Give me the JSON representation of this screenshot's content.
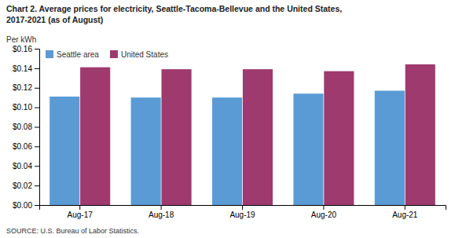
{
  "chart_data": {
    "type": "bar",
    "title": [
      "Chart 2. Average prices for electricity, Seattle-Tacoma-Bellevue and the United States,",
      "2017-2021  (as of August)"
    ],
    "ylabel": "Per kWh",
    "annotations": [
      "SOURCE: U.S. Bureau of Labor Statistics."
    ],
    "categories": [
      "Aug-17",
      "Aug-18",
      "Aug-19",
      "Aug-20",
      "Aug-21"
    ],
    "series": [
      {
        "name": "Seattle area",
        "color": "#5B9BD5",
        "values": [
          0.111,
          0.11,
          0.11,
          0.114,
          0.117
        ]
      },
      {
        "name": "United States",
        "color": "#9E3A6E",
        "values": [
          0.141,
          0.139,
          0.139,
          0.137,
          0.144
        ]
      }
    ],
    "ylim": [
      0,
      0.16
    ],
    "yticks": [
      {
        "value": 0.0,
        "label": "$0.00"
      },
      {
        "value": 0.02,
        "label": "$0.02"
      },
      {
        "value": 0.04,
        "label": "$0.04"
      },
      {
        "value": 0.06,
        "label": "$0.06"
      },
      {
        "value": 0.08,
        "label": "$0.08"
      },
      {
        "value": 0.1,
        "label": "$0.10"
      },
      {
        "value": 0.12,
        "label": "$0.12"
      },
      {
        "value": 0.14,
        "label": "$0.14"
      },
      {
        "value": 0.16,
        "label": "$0.16"
      }
    ],
    "legend": "upper left",
    "grid": false
  }
}
